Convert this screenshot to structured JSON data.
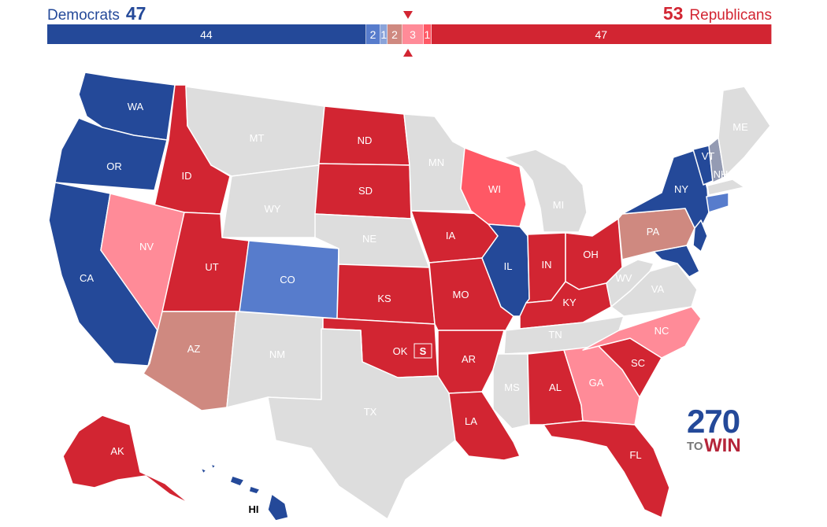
{
  "header": {
    "dem_label": "Democrats",
    "dem_total": "47",
    "rep_total": "53",
    "rep_label": "Republicans"
  },
  "colors": {
    "safe_dem": "#244999",
    "likely_dem": "#577ccc",
    "lean_dem": "#8aa3d9",
    "tossup_dem": "#949bb3",
    "tossup_rep": "#cf8980",
    "lean_rep": "#ff5865",
    "likely_rep": "#ff8b98",
    "safe_rep": "#d22532",
    "no_race": "#dddddd"
  },
  "bar": [
    {
      "label": "44",
      "count": 44,
      "color": "#244999"
    },
    {
      "label": "2",
      "count": 2,
      "color": "#577ccc"
    },
    {
      "label": "1",
      "count": 1,
      "color": "#8aa3d9"
    },
    {
      "label": "2",
      "count": 2,
      "color": "#cf8980"
    },
    {
      "label": "3",
      "count": 3,
      "color": "#ff8b98"
    },
    {
      "label": "1",
      "count": 1,
      "color": "#ff5865"
    },
    {
      "label": "47",
      "count": 47,
      "color": "#d22532"
    }
  ],
  "states": {
    "WA": "WA",
    "OR": "OR",
    "CA": "CA",
    "ID": "ID",
    "NV": "NV",
    "MT": "MT",
    "WY": "WY",
    "UT": "UT",
    "AZ": "AZ",
    "CO": "CO",
    "NM": "NM",
    "ND": "ND",
    "SD": "SD",
    "NE": "NE",
    "KS": "KS",
    "OK": "OK",
    "TX": "TX",
    "MN": "MN",
    "IA": "IA",
    "MO": "MO",
    "AR": "AR",
    "LA": "LA",
    "WI": "WI",
    "IL": "IL",
    "MI": "MI",
    "IN": "IN",
    "OH": "OH",
    "KY": "KY",
    "TN": "TN",
    "MS": "MS",
    "AL": "AL",
    "GA": "GA",
    "FL": "FL",
    "SC": "SC",
    "NC": "NC",
    "VA": "VA",
    "WV": "WV",
    "PA": "PA",
    "NY": "NY",
    "VT": "VT",
    "NH": "NH",
    "ME": "ME",
    "AK": "AK",
    "HI": "HI",
    "special": "S"
  },
  "logo": {
    "big": "270",
    "to": "TO",
    "win": "WIN"
  }
}
